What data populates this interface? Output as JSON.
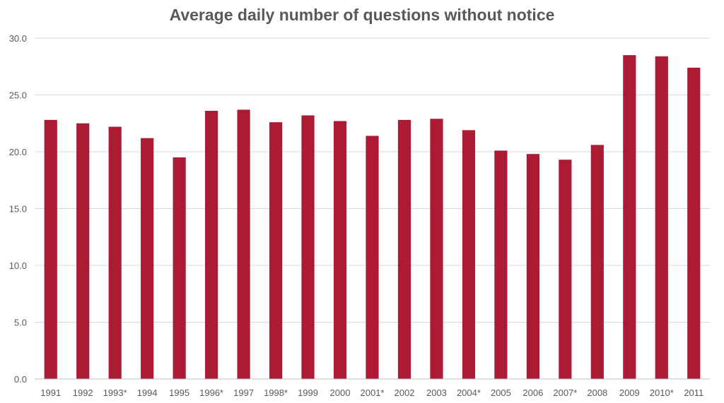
{
  "chart_data": {
    "type": "bar",
    "title": "Average daily number of questions without notice",
    "xlabel": "",
    "ylabel": "",
    "ylim": [
      0,
      30
    ],
    "y_ticks": [
      "0.0",
      "5.0",
      "10.0",
      "15.0",
      "20.0",
      "25.0",
      "30.0"
    ],
    "grid": true,
    "bar_color": "#ac1a33",
    "categories": [
      "1991",
      "1992",
      "1993*",
      "1994",
      "1995",
      "1996*",
      "1997",
      "1998*",
      "1999",
      "2000",
      "2001*",
      "2002",
      "2003",
      "2004*",
      "2005",
      "2006",
      "2007*",
      "2008",
      "2009",
      "2010*",
      "2011"
    ],
    "values": [
      22.8,
      22.5,
      22.2,
      21.2,
      19.5,
      23.6,
      23.7,
      22.6,
      23.2,
      22.7,
      21.4,
      22.8,
      22.9,
      21.9,
      20.1,
      19.8,
      19.3,
      20.6,
      28.5,
      28.4,
      27.4
    ]
  }
}
